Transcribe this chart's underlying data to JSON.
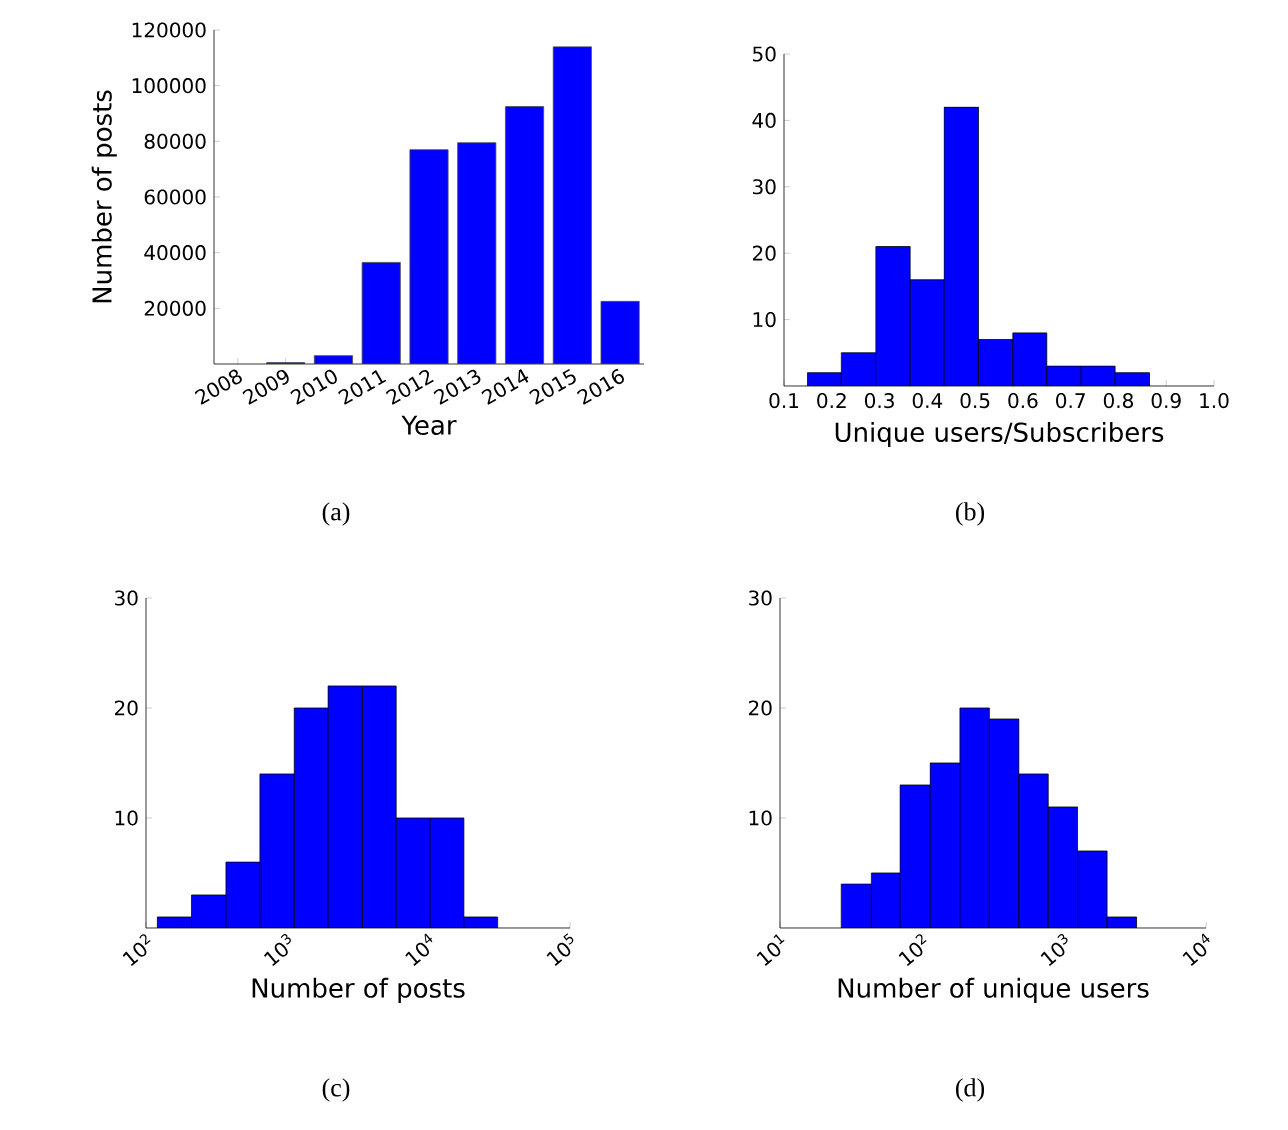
{
  "chart_data": [
    {
      "type": "bar",
      "xlabel": "Year",
      "ylabel": "Number of posts",
      "categories": [
        "2008",
        "2009",
        "2010",
        "2011",
        "2012",
        "2013",
        "2014",
        "2015",
        "2016"
      ],
      "values": [
        null,
        500,
        3000,
        36500,
        77000,
        79500,
        92500,
        114000,
        22500
      ],
      "color": "#0000ff",
      "ylim": [
        0,
        120000
      ],
      "yticks": [
        20000,
        40000,
        60000,
        80000,
        100000,
        120000
      ],
      "annotations": [
        "(a)"
      ]
    },
    {
      "type": "histogram",
      "xlabel": "Unique users/Subscribers",
      "bins": [
        0.149,
        0.22,
        0.292,
        0.364,
        0.435,
        0.507,
        0.579,
        0.65,
        0.722,
        0.793,
        0.865
      ],
      "values": [
        2,
        5,
        21,
        16,
        42,
        7,
        8,
        3,
        3,
        2
      ],
      "color": "#0000ff",
      "xlim": [
        0.1,
        1.0
      ],
      "xticks": [
        {
          "value": 0.1,
          "label": "0.1"
        },
        {
          "value": 0.2,
          "label": "0.2"
        },
        {
          "value": 0.3,
          "label": "0.3"
        },
        {
          "value": 0.4,
          "label": "0.4"
        },
        {
          "value": 0.5,
          "label": "0.5"
        },
        {
          "value": 0.6,
          "label": "0.6"
        },
        {
          "value": 0.7,
          "label": "0.7"
        },
        {
          "value": 0.8,
          "label": "0.8"
        },
        {
          "value": 0.9,
          "label": "0.9"
        },
        {
          "value": 1.0,
          "label": "1.0"
        }
      ],
      "ylim": [
        0,
        50
      ],
      "yticks": [
        10,
        20,
        30,
        40,
        50
      ],
      "annotations": [
        "(b)"
      ]
    },
    {
      "type": "histogram",
      "xlabel": "Number of posts",
      "log": "x",
      "bins": [
        120,
        210,
        368,
        640,
        1119,
        1941,
        3396,
        5888,
        10230,
        17740,
        30760
      ],
      "values": [
        1,
        3,
        6,
        14,
        20,
        22,
        22,
        10,
        10,
        1
      ],
      "color": "#0000ff",
      "xlim": [
        100,
        100000
      ],
      "xticks": [
        {
          "value": 100,
          "label": "10$^{2}$"
        },
        {
          "value": 1000,
          "label": "10$^{3}$"
        },
        {
          "value": 10000,
          "label": "10$^{4}$"
        },
        {
          "value": 100000,
          "label": "10$^{5}$"
        }
      ],
      "ylim": [
        0,
        30
      ],
      "yticks": [
        10,
        20,
        30
      ],
      "annotations": [
        "(c)"
      ]
    },
    {
      "type": "histogram",
      "xlabel": "Number of unique users",
      "log": "x",
      "bins": [
        27,
        44,
        70,
        114,
        185,
        298,
        481,
        774,
        1247,
        2010,
        3243
      ],
      "values": [
        4,
        5,
        13,
        15,
        20,
        19,
        14,
        11,
        7,
        1
      ],
      "color": "#0000ff",
      "xlim": [
        10,
        10000
      ],
      "xticks": [
        {
          "value": 10,
          "label": "10$^{1}$"
        },
        {
          "value": 100,
          "label": "10$^{2}$"
        },
        {
          "value": 1000,
          "label": "10$^{3}$"
        },
        {
          "value": 10000,
          "label": "10$^{4}$"
        }
      ],
      "ylim": [
        0,
        30
      ],
      "yticks": [
        10,
        20,
        30
      ],
      "annotations": [
        "(d)"
      ]
    }
  ]
}
